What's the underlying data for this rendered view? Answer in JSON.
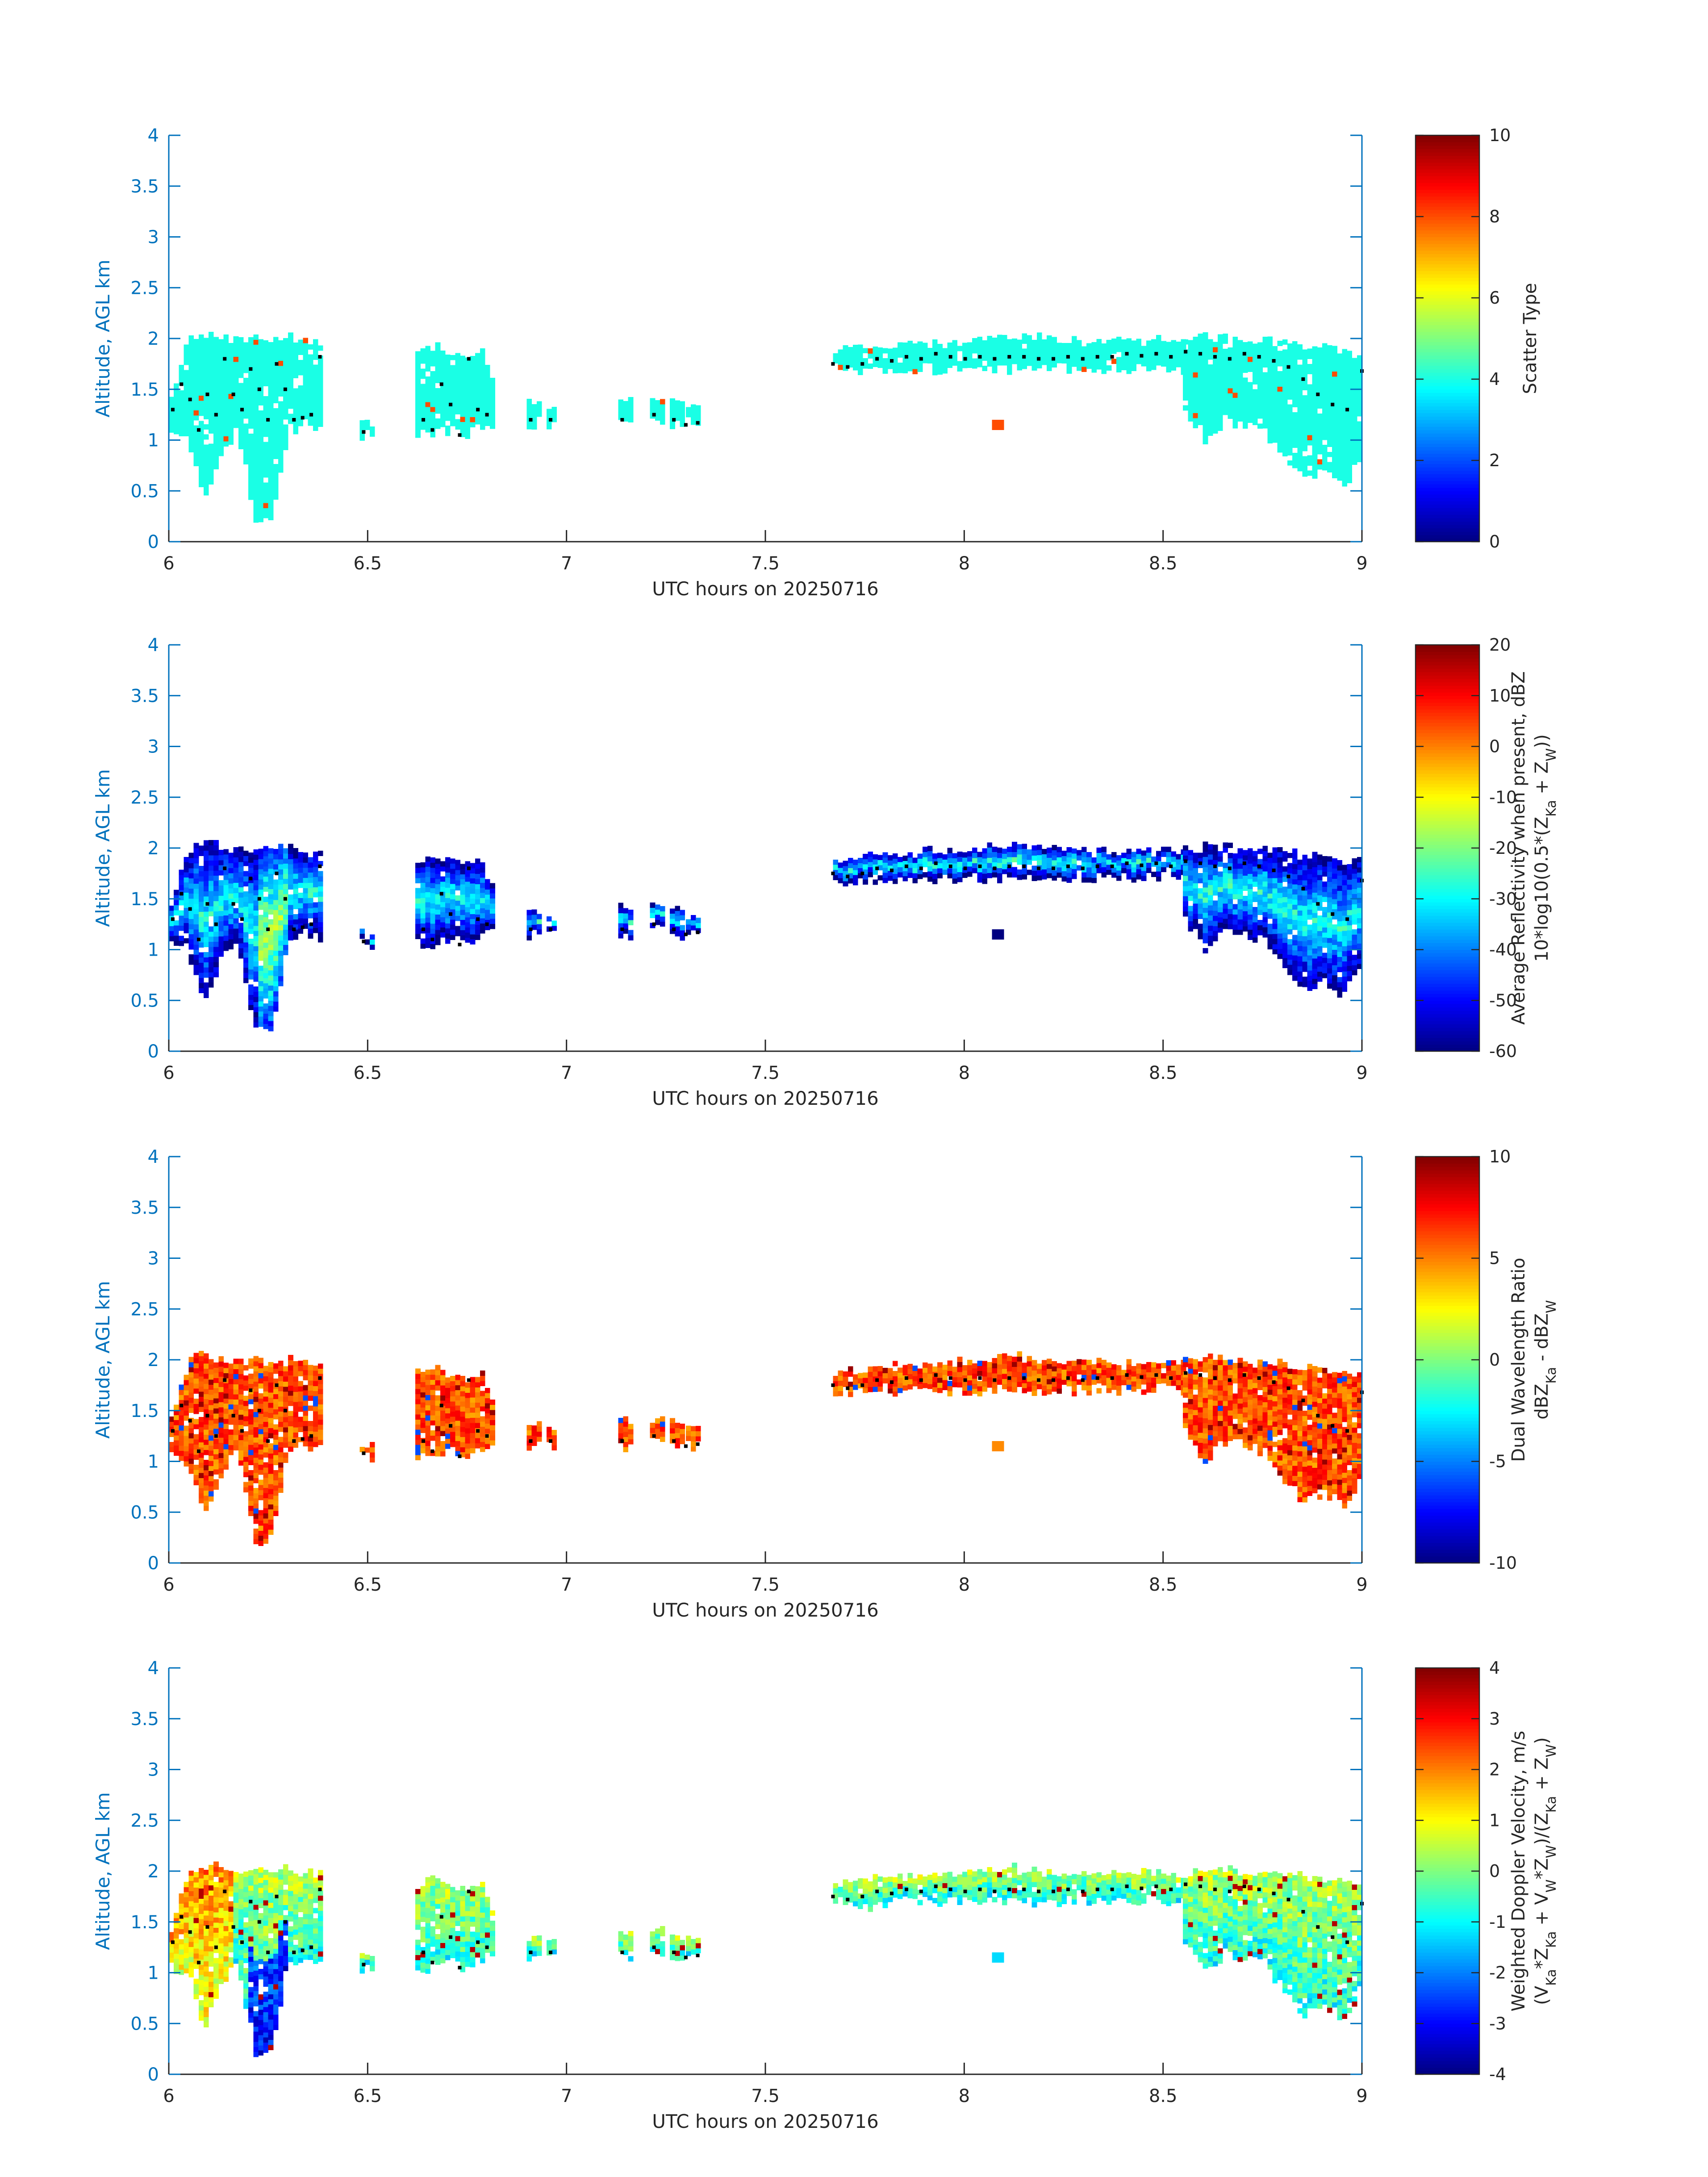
{
  "figure": {
    "colors": {
      "axis": "#0072BD",
      "text": "#262626",
      "marker": "#000000",
      "background": "#ffffff"
    }
  },
  "chart_data": [
    {
      "type": "heatmap",
      "xlabel": "UTC hours on 20250716",
      "ylabel": "Altitude, AGL km",
      "xlim": [
        6,
        9
      ],
      "ylim": [
        0,
        4
      ],
      "xticks": [
        "6",
        "6.5",
        "7",
        "7.5",
        "8",
        "8.5",
        "9"
      ],
      "yticks": [
        "0",
        "0.5",
        "1",
        "1.5",
        "2",
        "2.5",
        "3",
        "3.5",
        "4"
      ],
      "colorbar": {
        "label_lines": [
          "Scatter Type"
        ],
        "range": [
          0,
          10
        ],
        "ticks": [
          "0",
          "2",
          "4",
          "6",
          "8",
          "10"
        ],
        "colormap": "jet"
      },
      "field_kind": "scatter-type",
      "dominant_value": 4,
      "outlier_value": 8
    },
    {
      "type": "heatmap",
      "xlabel": "UTC hours on 20250716",
      "ylabel": "Altitude, AGL km",
      "xlim": [
        6,
        9
      ],
      "ylim": [
        0,
        4
      ],
      "xticks": [
        "6",
        "6.5",
        "7",
        "7.5",
        "8",
        "8.5",
        "9"
      ],
      "yticks": [
        "0",
        "0.5",
        "1",
        "1.5",
        "2",
        "2.5",
        "3",
        "3.5",
        "4"
      ],
      "colorbar": {
        "label_lines": [
          "Average Reflectivity when present, dBZ",
          "10*log10(0.5*(Z_Ka + Z_W))"
        ],
        "range": [
          -60,
          20
        ],
        "ticks": [
          "-60",
          "-50",
          "-40",
          "-30",
          "-20",
          "-10",
          "0",
          "10",
          "20"
        ],
        "colormap": "jet"
      },
      "field_kind": "reflectivity",
      "value_range_shown": [
        -60,
        -15
      ]
    },
    {
      "type": "heatmap",
      "xlabel": "UTC hours on 20250716",
      "ylabel": "Altitude, AGL km",
      "xlim": [
        6,
        9
      ],
      "ylim": [
        0,
        4
      ],
      "xticks": [
        "6",
        "6.5",
        "7",
        "7.5",
        "8",
        "8.5",
        "9"
      ],
      "yticks": [
        "0",
        "0.5",
        "1",
        "1.5",
        "2",
        "2.5",
        "3",
        "3.5",
        "4"
      ],
      "colorbar": {
        "label_lines": [
          "Dual Wavelength Ratio",
          "dBZ_Ka - dBZ_W"
        ],
        "range": [
          -10,
          10
        ],
        "ticks": [
          "-10",
          "-5",
          "0",
          "5",
          "10"
        ],
        "colormap": "jet"
      },
      "field_kind": "dwr",
      "value_range_shown": [
        -8,
        10
      ]
    },
    {
      "type": "heatmap",
      "xlabel": "UTC hours on 20250716",
      "ylabel": "Altitude, AGL km",
      "xlim": [
        6,
        9
      ],
      "ylim": [
        0,
        4
      ],
      "xticks": [
        "6",
        "6.5",
        "7",
        "7.5",
        "8",
        "8.5",
        "9"
      ],
      "yticks": [
        "0",
        "0.5",
        "1",
        "1.5",
        "2",
        "2.5",
        "3",
        "3.5",
        "4"
      ],
      "colorbar": {
        "label_lines": [
          "Weighted Doppler Velocity, m/s",
          "(V_Ka*Z_Ka + V_W*Z_W)/(Z_Ka + Z_W)"
        ],
        "range": [
          -4,
          4
        ],
        "ticks": [
          "-4",
          "-3",
          "-2",
          "-1",
          "0",
          "1",
          "2",
          "3",
          "4"
        ],
        "colormap": "jet"
      },
      "field_kind": "velocity",
      "value_range_shown": [
        -3,
        4
      ]
    }
  ],
  "shared": {
    "cloud_segments": [
      {
        "t0": 6.0,
        "t1": 6.38,
        "base": [
          1.05,
          1.0,
          0.45,
          0.9,
          1.1,
          0.2,
          0.25,
          1.1,
          1.15,
          1.1
        ],
        "top": [
          1.4,
          1.95,
          2.05,
          2.0,
          1.95,
          2.0,
          1.95,
          2.0,
          1.95,
          1.95
        ]
      },
      {
        "t0": 6.48,
        "t1": 6.51,
        "base": [
          1.05,
          1.05
        ],
        "top": [
          1.15,
          1.15
        ]
      },
      {
        "t0": 6.62,
        "t1": 6.82,
        "base": [
          1.05,
          1.05,
          1.1,
          1.05,
          1.15,
          1.15
        ],
        "top": [
          1.85,
          1.9,
          1.85,
          1.8,
          1.85,
          1.5
        ]
      },
      {
        "t0": 6.9,
        "t1": 6.93,
        "base": [
          1.15,
          1.15
        ],
        "top": [
          1.35,
          1.35
        ]
      },
      {
        "t0": 6.95,
        "t1": 6.97,
        "base": [
          1.15,
          1.15
        ],
        "top": [
          1.3,
          1.3
        ]
      },
      {
        "t0": 7.13,
        "t1": 7.16,
        "base": [
          1.15,
          1.15
        ],
        "top": [
          1.4,
          1.4
        ]
      },
      {
        "t0": 7.21,
        "t1": 7.24,
        "base": [
          1.2,
          1.2
        ],
        "top": [
          1.4,
          1.4
        ]
      },
      {
        "t0": 7.26,
        "t1": 7.29,
        "base": [
          1.15,
          1.15
        ],
        "top": [
          1.35,
          1.35
        ]
      },
      {
        "t0": 7.3,
        "t1": 7.33,
        "base": [
          1.15,
          1.15
        ],
        "top": [
          1.3,
          1.3
        ]
      },
      {
        "t0": 7.67,
        "t1": 8.55,
        "base": [
          1.7,
          1.65,
          1.7,
          1.7,
          1.7,
          1.7,
          1.7,
          1.7,
          1.7,
          1.7,
          1.72,
          1.7
        ],
        "top": [
          1.85,
          1.9,
          1.92,
          1.95,
          1.95,
          2.0,
          2.0,
          1.97,
          1.95,
          1.95,
          1.95,
          1.95
        ]
      },
      {
        "t0": 8.55,
        "t1": 9.0,
        "base": [
          1.3,
          1.0,
          1.2,
          1.15,
          1.1,
          0.8,
          0.6,
          0.7,
          0.55,
          0.9
        ],
        "top": [
          1.95,
          2.0,
          2.0,
          1.95,
          1.95,
          1.95,
          1.9,
          1.9,
          1.85,
          1.85
        ]
      }
    ],
    "extra_patches": [
      {
        "t0": 8.07,
        "t1": 8.1,
        "z0": 1.1,
        "z1": 1.2
      }
    ],
    "marker_tracks": [
      {
        "t0": 6.01,
        "t1": 6.38,
        "z": [
          1.3,
          1.55,
          1.4,
          1.1,
          1.45,
          1.25,
          1.8,
          1.45,
          1.3,
          1.7,
          1.5,
          1.2,
          1.75,
          1.5,
          1.2,
          1.22,
          1.25,
          1.82
        ]
      },
      {
        "t0": 6.49,
        "t1": 6.49,
        "z": [
          1.08
        ]
      },
      {
        "t0": 6.64,
        "t1": 6.8,
        "z": [
          1.2,
          1.1,
          1.55,
          1.35,
          1.05,
          1.8,
          1.3,
          1.25
        ]
      },
      {
        "t0": 6.91,
        "t1": 6.96,
        "z": [
          1.2,
          1.2
        ]
      },
      {
        "t0": 7.14,
        "t1": 7.14,
        "z": [
          1.2
        ]
      },
      {
        "t0": 7.22,
        "t1": 7.22,
        "z": [
          1.25
        ]
      },
      {
        "t0": 7.27,
        "t1": 7.33,
        "z": [
          1.2,
          1.15,
          1.17
        ]
      },
      {
        "t0": 7.67,
        "t1": 9.0,
        "z": [
          1.75,
          1.72,
          1.75,
          1.8,
          1.78,
          1.82,
          1.8,
          1.85,
          1.82,
          1.8,
          1.82,
          1.8,
          1.82,
          1.82,
          1.8,
          1.8,
          1.82,
          1.8,
          1.82,
          1.82,
          1.85,
          1.83,
          1.85,
          1.82,
          1.87,
          1.85,
          1.82,
          1.8,
          1.85,
          1.82,
          1.78,
          1.72,
          1.6,
          1.45,
          1.35,
          1.3,
          1.68
        ]
      }
    ]
  }
}
